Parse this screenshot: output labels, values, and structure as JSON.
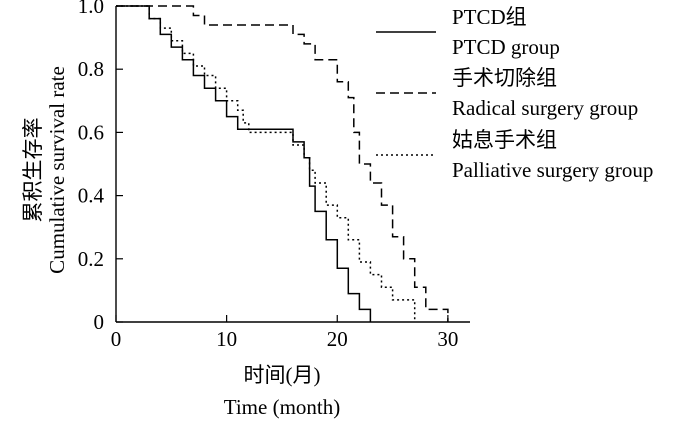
{
  "chart_data": {
    "type": "line",
    "ylabel_cn": "累积生存率",
    "ylabel_en": "Cumulative survival rate",
    "xlabel_cn": "时间(月)",
    "xlabel_en": "Time (month)",
    "xlim": [
      0,
      32
    ],
    "ylim": [
      0,
      1.0
    ],
    "x_ticks": [
      0,
      10,
      20,
      30
    ],
    "y_ticks": [
      0,
      0.2,
      0.4,
      0.6,
      0.8,
      1.0
    ],
    "x_tick_labels": [
      "0",
      "10",
      "20",
      "30"
    ],
    "y_tick_labels": [
      "0",
      "0.2",
      "0.4",
      "0.6",
      "0.8",
      "1.0"
    ],
    "grid": false,
    "legend_position": "top-right",
    "series": [
      {
        "name_cn": "PTCD组",
        "name_en": "PTCD group",
        "style": "solid",
        "points": [
          [
            0,
            1.0
          ],
          [
            3,
            1.0
          ],
          [
            3,
            0.96
          ],
          [
            4,
            0.96
          ],
          [
            4,
            0.91
          ],
          [
            5,
            0.91
          ],
          [
            5,
            0.87
          ],
          [
            6,
            0.87
          ],
          [
            6,
            0.83
          ],
          [
            7,
            0.83
          ],
          [
            7,
            0.78
          ],
          [
            8,
            0.78
          ],
          [
            8,
            0.74
          ],
          [
            9,
            0.74
          ],
          [
            9,
            0.7
          ],
          [
            10,
            0.7
          ],
          [
            10,
            0.65
          ],
          [
            11,
            0.65
          ],
          [
            11,
            0.61
          ],
          [
            16,
            0.61
          ],
          [
            16,
            0.57
          ],
          [
            17,
            0.57
          ],
          [
            17,
            0.52
          ],
          [
            17.5,
            0.52
          ],
          [
            17.5,
            0.43
          ],
          [
            18,
            0.43
          ],
          [
            18,
            0.35
          ],
          [
            19,
            0.35
          ],
          [
            19,
            0.26
          ],
          [
            20,
            0.26
          ],
          [
            20,
            0.17
          ],
          [
            21,
            0.17
          ],
          [
            21,
            0.09
          ],
          [
            22,
            0.09
          ],
          [
            22,
            0.04
          ],
          [
            23,
            0.04
          ],
          [
            23,
            0.0
          ]
        ]
      },
      {
        "name_cn": "手术切除组",
        "name_en": "Radical surgery group",
        "style": "dashed",
        "points": [
          [
            0,
            1.0
          ],
          [
            7,
            1.0
          ],
          [
            7,
            0.97
          ],
          [
            8,
            0.97
          ],
          [
            8,
            0.94
          ],
          [
            16,
            0.94
          ],
          [
            16,
            0.91
          ],
          [
            17,
            0.91
          ],
          [
            17,
            0.88
          ],
          [
            18,
            0.88
          ],
          [
            18,
            0.83
          ],
          [
            20,
            0.83
          ],
          [
            20,
            0.76
          ],
          [
            21,
            0.76
          ],
          [
            21,
            0.71
          ],
          [
            21.5,
            0.71
          ],
          [
            21.5,
            0.6
          ],
          [
            22,
            0.6
          ],
          [
            22,
            0.5
          ],
          [
            23,
            0.5
          ],
          [
            23,
            0.44
          ],
          [
            24,
            0.44
          ],
          [
            24,
            0.37
          ],
          [
            25,
            0.37
          ],
          [
            25,
            0.27
          ],
          [
            26,
            0.27
          ],
          [
            26,
            0.2
          ],
          [
            27,
            0.2
          ],
          [
            27,
            0.11
          ],
          [
            28,
            0.11
          ],
          [
            28,
            0.04
          ],
          [
            30,
            0.04
          ],
          [
            30,
            0.0
          ]
        ]
      },
      {
        "name_cn": "姑息手术组",
        "name_en": "Palliative surgery group",
        "style": "dotted",
        "points": [
          [
            0,
            1.0
          ],
          [
            3,
            1.0
          ],
          [
            3,
            0.96
          ],
          [
            4,
            0.96
          ],
          [
            4,
            0.93
          ],
          [
            5,
            0.93
          ],
          [
            5,
            0.89
          ],
          [
            6,
            0.89
          ],
          [
            6,
            0.85
          ],
          [
            7,
            0.85
          ],
          [
            7,
            0.81
          ],
          [
            8,
            0.81
          ],
          [
            8,
            0.78
          ],
          [
            9,
            0.78
          ],
          [
            9,
            0.74
          ],
          [
            10,
            0.74
          ],
          [
            10,
            0.7
          ],
          [
            11,
            0.7
          ],
          [
            11,
            0.67
          ],
          [
            11.5,
            0.67
          ],
          [
            11.5,
            0.63
          ],
          [
            12,
            0.63
          ],
          [
            12,
            0.6
          ],
          [
            16,
            0.6
          ],
          [
            16,
            0.56
          ],
          [
            17,
            0.56
          ],
          [
            17,
            0.52
          ],
          [
            17.5,
            0.52
          ],
          [
            17.5,
            0.48
          ],
          [
            18,
            0.48
          ],
          [
            18,
            0.44
          ],
          [
            19,
            0.44
          ],
          [
            19,
            0.37
          ],
          [
            20,
            0.37
          ],
          [
            20,
            0.33
          ],
          [
            21,
            0.33
          ],
          [
            21,
            0.26
          ],
          [
            22,
            0.26
          ],
          [
            22,
            0.19
          ],
          [
            23,
            0.19
          ],
          [
            23,
            0.15
          ],
          [
            24,
            0.15
          ],
          [
            24,
            0.11
          ],
          [
            25,
            0.11
          ],
          [
            25,
            0.07
          ],
          [
            27,
            0.07
          ],
          [
            27,
            0.0
          ]
        ]
      }
    ]
  }
}
